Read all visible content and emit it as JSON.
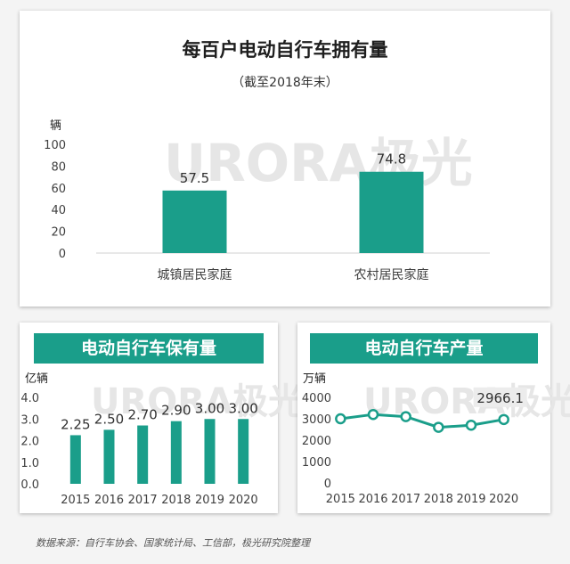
{
  "watermark": {
    "text": "URORA极光"
  },
  "top_chart": {
    "title": "每百户电动自行车拥有量",
    "subtitle": "（截至2018年末）",
    "unit": "辆"
  },
  "left_chart": {
    "banner": "电动自行车保有量",
    "unit": "亿辆"
  },
  "right_chart": {
    "banner": "电动自行车产量",
    "unit": "万辆"
  },
  "footer": "数据来源：自行车协会、国家统计局、工信部，极光研究院整理",
  "colors": {
    "bar": "#1a9e8a",
    "line": "#1a9e8a",
    "watermark": "#e6e6e6"
  },
  "chart_data": [
    {
      "type": "bar",
      "title": "每百户电动自行车拥有量",
      "subtitle": "（截至2018年末）",
      "categories": [
        "城镇居民家庭",
        "农村居民家庭"
      ],
      "values": [
        57.5,
        74.8
      ],
      "value_labels": [
        "57.5",
        "74.8"
      ],
      "ylabel": "辆",
      "ylim": [
        0,
        100
      ],
      "yticks": [
        0,
        20,
        40,
        60,
        80,
        100
      ],
      "grid": false
    },
    {
      "type": "bar",
      "title": "电动自行车保有量",
      "categories": [
        "2015",
        "2016",
        "2017",
        "2018",
        "2019",
        "2020"
      ],
      "values": [
        2.25,
        2.5,
        2.7,
        2.9,
        3.0,
        3.0
      ],
      "value_labels": [
        "2.25",
        "2.50",
        "2.70",
        "2.90",
        "3.00",
        "3.00"
      ],
      "ylabel": "亿辆",
      "ylim": [
        0,
        4.0
      ],
      "yticks": [
        "0.0",
        "1.0",
        "2.0",
        "3.0",
        "4.0"
      ],
      "grid": false
    },
    {
      "type": "line",
      "title": "电动自行车产量",
      "categories": [
        "2015",
        "2016",
        "2017",
        "2018",
        "2019",
        "2020"
      ],
      "values": [
        3000,
        3200,
        3100,
        2600,
        2700,
        2966.1
      ],
      "value_labels": {
        "2020": "2966.1"
      },
      "ylabel": "万辆",
      "ylim": [
        0,
        4000
      ],
      "yticks": [
        "0",
        "1000",
        "2000",
        "3000",
        "4000"
      ],
      "grid": false
    }
  ]
}
